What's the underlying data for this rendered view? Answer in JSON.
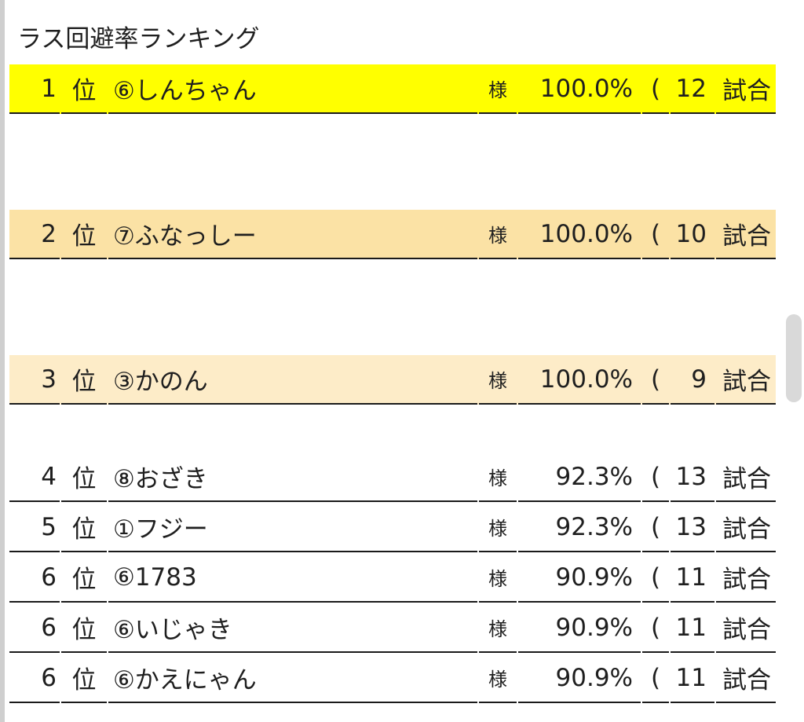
{
  "title": "ラス回避率ランキング",
  "pos_label": "位",
  "sama_label": "様",
  "paren_label": "(",
  "shiai_label": "試合",
  "colors": {
    "first": "#ffff00",
    "second": "#fbe2a5",
    "third": "#fdecc8",
    "line": "#1a1a1a"
  },
  "rows": [
    {
      "rank": "1",
      "name": "⑥しんちゃん",
      "rate": "100.0%",
      "games": "12"
    },
    {
      "rank": "2",
      "name": "⑦ふなっしー",
      "rate": "100.0%",
      "games": "10"
    },
    {
      "rank": "3",
      "name": "③かのん",
      "rate": "100.0%",
      "games": "9"
    },
    {
      "rank": "4",
      "name": "⑧おざき",
      "rate": "92.3%",
      "games": "13"
    },
    {
      "rank": "5",
      "name": "①フジー",
      "rate": "92.3%",
      "games": "13"
    },
    {
      "rank": "6",
      "name": "⑥1783",
      "rate": "90.9%",
      "games": "11"
    },
    {
      "rank": "6",
      "name": "⑥いじゃき",
      "rate": "90.9%",
      "games": "11"
    },
    {
      "rank": "6",
      "name": "⑥かえにゃん",
      "rate": "90.9%",
      "games": "11"
    }
  ]
}
